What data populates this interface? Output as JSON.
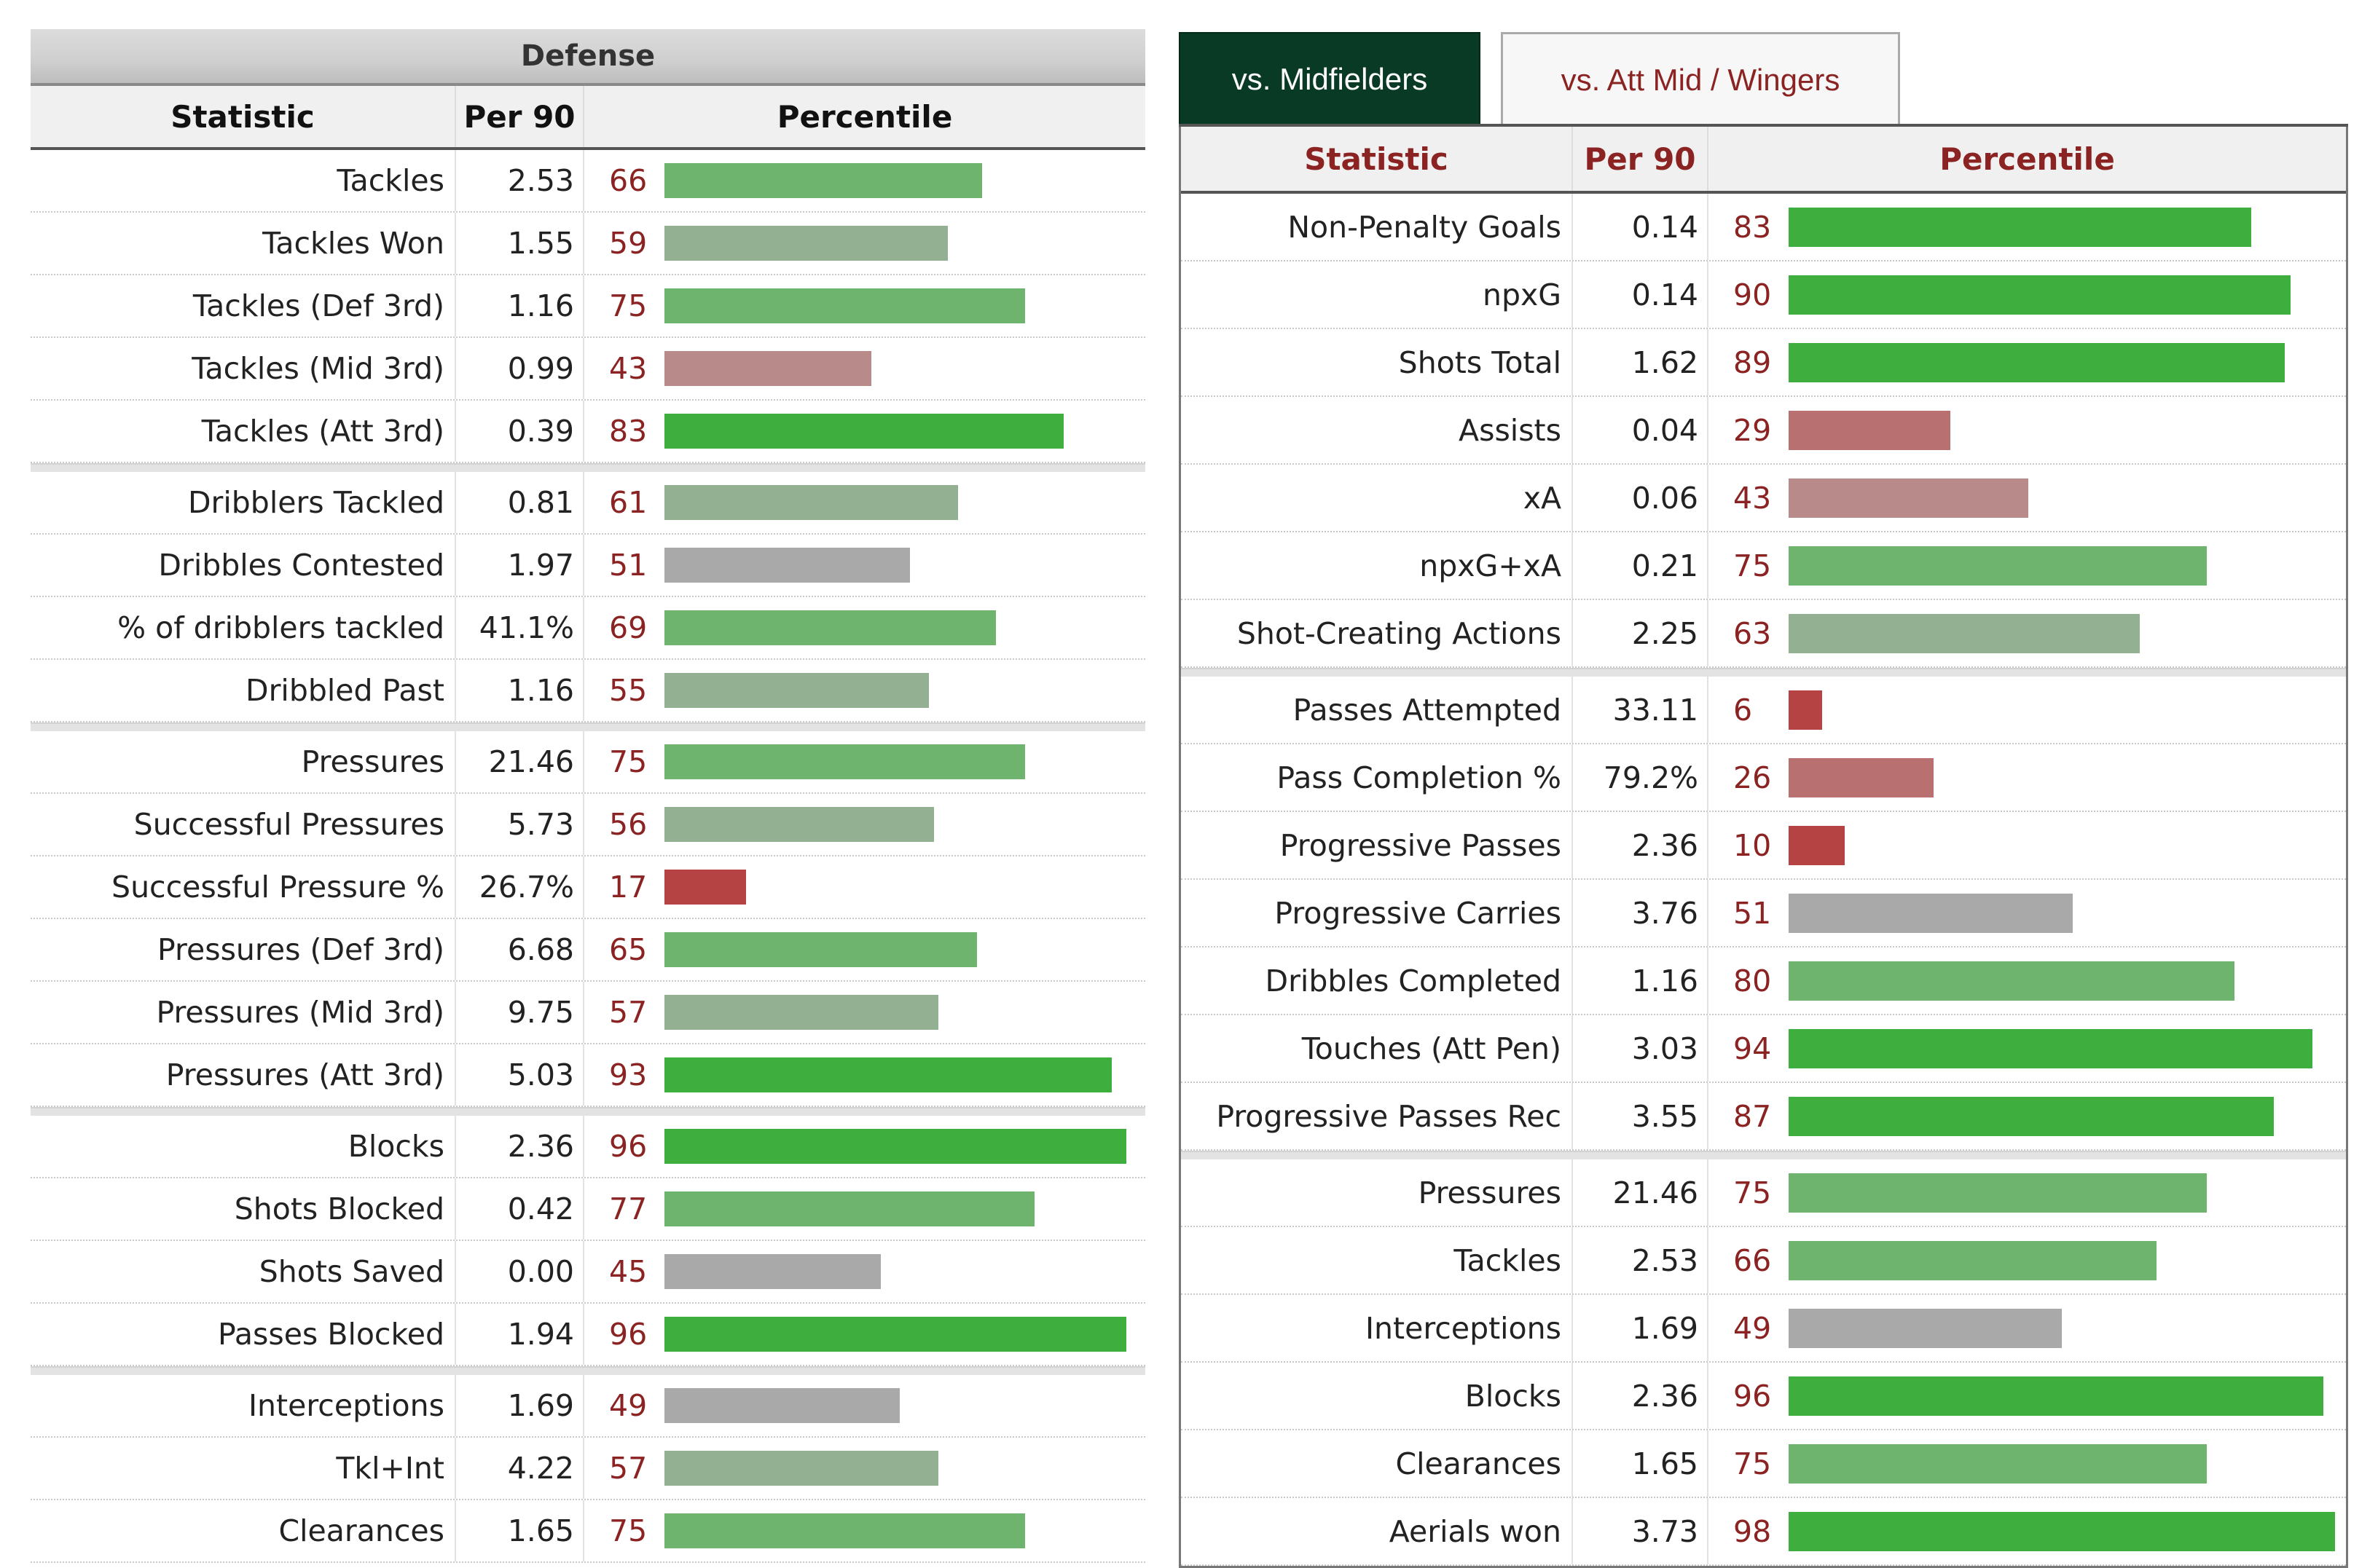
{
  "colors": {
    "high": "#3eae3e",
    "mid_high": "#6eb46e",
    "neutral": "#a9a9a9",
    "mid_low": "#b88a8a",
    "low": "#b54343",
    "active_tab_bg": "#083a26",
    "percentile_text": "#8b2323"
  },
  "left": {
    "section_title": "Defense",
    "headers": {
      "statistic": "Statistic",
      "per90": "Per 90",
      "percentile": "Percentile"
    },
    "groups": [
      [
        {
          "stat": "Tackles",
          "per90": "2.53",
          "pct": 66
        },
        {
          "stat": "Tackles Won",
          "per90": "1.55",
          "pct": 59
        },
        {
          "stat": "Tackles (Def 3rd)",
          "per90": "1.16",
          "pct": 75
        },
        {
          "stat": "Tackles (Mid 3rd)",
          "per90": "0.99",
          "pct": 43
        },
        {
          "stat": "Tackles (Att 3rd)",
          "per90": "0.39",
          "pct": 83
        }
      ],
      [
        {
          "stat": "Dribblers Tackled",
          "per90": "0.81",
          "pct": 61
        },
        {
          "stat": "Dribbles Contested",
          "per90": "1.97",
          "pct": 51
        },
        {
          "stat": "% of dribblers tackled",
          "per90": "41.1%",
          "pct": 69
        },
        {
          "stat": "Dribbled Past",
          "per90": "1.16",
          "pct": 55
        }
      ],
      [
        {
          "stat": "Pressures",
          "per90": "21.46",
          "pct": 75
        },
        {
          "stat": "Successful Pressures",
          "per90": "5.73",
          "pct": 56
        },
        {
          "stat": "Successful Pressure %",
          "per90": "26.7%",
          "pct": 17
        },
        {
          "stat": "Pressures (Def 3rd)",
          "per90": "6.68",
          "pct": 65
        },
        {
          "stat": "Pressures (Mid 3rd)",
          "per90": "9.75",
          "pct": 57
        },
        {
          "stat": "Pressures (Att 3rd)",
          "per90": "5.03",
          "pct": 93
        }
      ],
      [
        {
          "stat": "Blocks",
          "per90": "2.36",
          "pct": 96
        },
        {
          "stat": "Shots Blocked",
          "per90": "0.42",
          "pct": 77
        },
        {
          "stat": "Shots Saved",
          "per90": "0.00",
          "pct": 45
        },
        {
          "stat": "Passes Blocked",
          "per90": "1.94",
          "pct": 96
        }
      ],
      [
        {
          "stat": "Interceptions",
          "per90": "1.69",
          "pct": 49
        },
        {
          "stat": "Tkl+Int",
          "per90": "4.22",
          "pct": 57
        },
        {
          "stat": "Clearances",
          "per90": "1.65",
          "pct": 75
        }
      ]
    ]
  },
  "right": {
    "tabs": [
      {
        "label": "vs. Midfielders",
        "active": true
      },
      {
        "label": "vs. Att Mid / Wingers",
        "active": false
      }
    ],
    "headers": {
      "statistic": "Statistic",
      "per90": "Per 90",
      "percentile": "Percentile"
    },
    "groups": [
      [
        {
          "stat": "Non-Penalty Goals",
          "per90": "0.14",
          "pct": 83
        },
        {
          "stat": "npxG",
          "per90": "0.14",
          "pct": 90
        },
        {
          "stat": "Shots Total",
          "per90": "1.62",
          "pct": 89
        },
        {
          "stat": "Assists",
          "per90": "0.04",
          "pct": 29
        },
        {
          "stat": "xA",
          "per90": "0.06",
          "pct": 43
        },
        {
          "stat": "npxG+xA",
          "per90": "0.21",
          "pct": 75
        },
        {
          "stat": "Shot-Creating Actions",
          "per90": "2.25",
          "pct": 63
        }
      ],
      [
        {
          "stat": "Passes Attempted",
          "per90": "33.11",
          "pct": 6
        },
        {
          "stat": "Pass Completion %",
          "per90": "79.2%",
          "pct": 26
        },
        {
          "stat": "Progressive Passes",
          "per90": "2.36",
          "pct": 10
        },
        {
          "stat": "Progressive Carries",
          "per90": "3.76",
          "pct": 51
        },
        {
          "stat": "Dribbles Completed",
          "per90": "1.16",
          "pct": 80
        },
        {
          "stat": "Touches (Att Pen)",
          "per90": "3.03",
          "pct": 94
        },
        {
          "stat": "Progressive Passes Rec",
          "per90": "3.55",
          "pct": 87
        }
      ],
      [
        {
          "stat": "Pressures",
          "per90": "21.46",
          "pct": 75
        },
        {
          "stat": "Tackles",
          "per90": "2.53",
          "pct": 66
        },
        {
          "stat": "Interceptions",
          "per90": "1.69",
          "pct": 49
        },
        {
          "stat": "Blocks",
          "per90": "2.36",
          "pct": 96
        },
        {
          "stat": "Clearances",
          "per90": "1.65",
          "pct": 75
        },
        {
          "stat": "Aerials won",
          "per90": "3.73",
          "pct": 98
        }
      ]
    ]
  }
}
